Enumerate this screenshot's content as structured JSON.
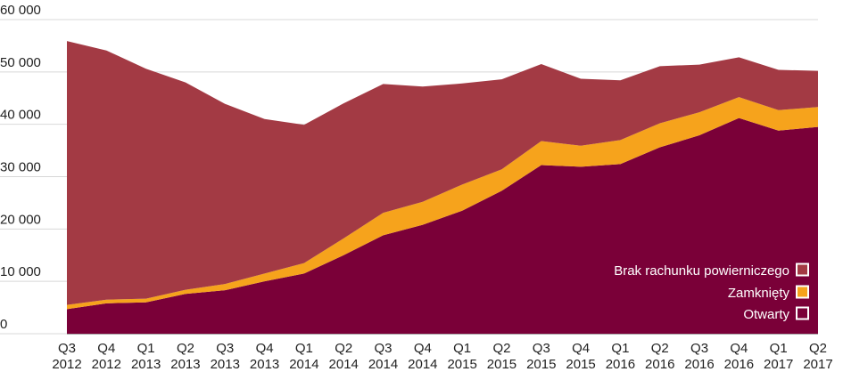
{
  "colors": {
    "brak": "#a33a44",
    "zamkniety": "#f6a31c",
    "otwarty": "#7a0038",
    "grid": "#d8d8d8",
    "axis_text": "#222222"
  },
  "chart_data": {
    "type": "area",
    "stacked": true,
    "title": "",
    "xlabel": "",
    "ylabel": "",
    "ylim": [
      0,
      60000
    ],
    "y_ticks": [
      0,
      10000,
      20000,
      30000,
      40000,
      50000,
      60000
    ],
    "y_tick_labels": [
      "0",
      "10 000",
      "20 000",
      "30 000",
      "40 000",
      "50 000",
      "60 000"
    ],
    "categories": [
      [
        "Q3",
        "2012"
      ],
      [
        "Q4",
        "2012"
      ],
      [
        "Q1",
        "2013"
      ],
      [
        "Q2",
        "2013"
      ],
      [
        "Q3",
        "2013"
      ],
      [
        "Q4",
        "2013"
      ],
      [
        "Q1",
        "2014"
      ],
      [
        "Q2",
        "2014"
      ],
      [
        "Q3",
        "2014"
      ],
      [
        "Q4",
        "2014"
      ],
      [
        "Q1",
        "2015"
      ],
      [
        "Q2",
        "2015"
      ],
      [
        "Q3",
        "2015"
      ],
      [
        "Q4",
        "2015"
      ],
      [
        "Q1",
        "2016"
      ],
      [
        "Q2",
        "2016"
      ],
      [
        "Q3",
        "2016"
      ],
      [
        "Q4",
        "2016"
      ],
      [
        "Q1",
        "2017"
      ],
      [
        "Q2",
        "2017"
      ]
    ],
    "grid": "horizontal",
    "legend_position": "bottom-right",
    "series": [
      {
        "name": "Otwarty",
        "color_key": "otwarty",
        "values": [
          4700,
          5800,
          6000,
          7600,
          8300,
          10000,
          11500,
          15000,
          18800,
          20800,
          23500,
          27300,
          32200,
          31900,
          32400,
          35600,
          37900,
          41200,
          38800,
          39500
        ]
      },
      {
        "name": "Zamknięty",
        "color_key": "zamkniety",
        "values": [
          800,
          700,
          700,
          800,
          1200,
          1500,
          2000,
          3200,
          4300,
          4400,
          5000,
          4100,
          4600,
          4000,
          4600,
          4600,
          4400,
          4000,
          3900,
          3800
        ]
      },
      {
        "name": "Brak rachunku powierniczego",
        "color_key": "brak",
        "values": [
          50400,
          47600,
          43900,
          39600,
          34400,
          29500,
          26400,
          25800,
          24600,
          22000,
          19300,
          17200,
          14700,
          12800,
          11400,
          10900,
          9100,
          7600,
          7700,
          6900
        ]
      }
    ],
    "legend": [
      {
        "label": "Brak rachunku powierniczego",
        "series_index": 2
      },
      {
        "label": "Zamknięty",
        "series_index": 1
      },
      {
        "label": "Otwarty",
        "series_index": 0
      }
    ]
  }
}
